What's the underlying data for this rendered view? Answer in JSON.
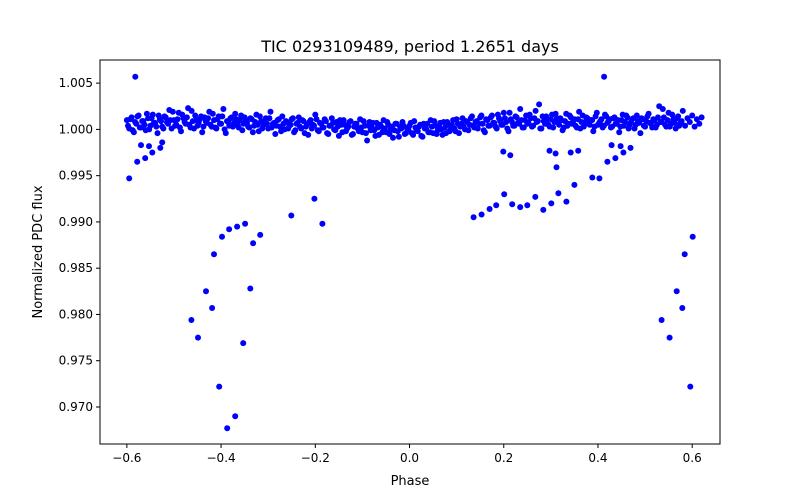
{
  "chart_data": {
    "type": "scatter",
    "title": "TIC 0293109489, period 1.2651 days",
    "xlabel": "Phase",
    "ylabel": "Normalized PDC flux",
    "xlim": [
      -0.657,
      0.659
    ],
    "ylim": [
      0.966,
      1.0075
    ],
    "xticks": [
      -0.6,
      -0.4,
      -0.2,
      0.0,
      0.2,
      0.4,
      0.6
    ],
    "xtick_labels": [
      "−0.6",
      "−0.4",
      "−0.2",
      "0.0",
      "0.2",
      "0.4",
      "0.6"
    ],
    "yticks": [
      0.97,
      0.975,
      0.98,
      0.985,
      0.99,
      0.995,
      1.0,
      1.005
    ],
    "ytick_labels": [
      "0.970",
      "0.975",
      "0.980",
      "0.985",
      "0.990",
      "0.995",
      "1.000",
      "1.005"
    ],
    "grid": false,
    "marker_color": "#0000ff",
    "band": {
      "x_start": -0.6,
      "x_step": 0.005,
      "y": [
        1.001,
        1.0001,
        1.0013,
        0.9997,
        1.0006,
        1.0015,
        1.0002,
        1.0009,
        0.9999,
        1.0012,
        1.0004,
        1.0016,
        1.0007,
        0.9996,
        1.0011,
        1.0003,
        1.0014,
        1.0008,
        1.0021,
        1.0001,
        1.001,
        1.0005,
        1.0018,
        0.9998,
        1.0012,
        1.0006,
        1.0023,
        1.0002,
        1.0009,
        1.0015,
        1.0004,
        1.0011,
        0.9997,
        1.0013,
        1.0007,
        1.0019,
        1.0003,
        1.001,
        1.0001,
        1.0014,
        1.0006,
        1.0022,
        0.9996,
        1.0008,
        1.0012,
        1.0003,
        1.0017,
        1.0005,
        1.001,
        0.9999,
        1.0013,
        1.0007,
        1.0002,
        1.0011,
        1.0004,
        1.0016,
        0.9998,
        1.0009,
        1.0005,
        1.0012,
        1.0001,
        1.0019,
        1.0006,
        0.9995,
        1.001,
        1.0003,
        1.0014,
        1.0,
        1.0008,
        1.0004,
        1.0011,
        0.9997,
        1.0006,
        1.0013,
        1.0001,
        1.0009,
        1.0003,
        0.9994,
        1.001,
        1.0005,
        1.0016,
        0.9999,
        1.0007,
        1.0002,
        1.0011,
        0.9996,
        1.0004,
        1.0012,
        1.0,
        1.0008,
        0.9993,
        1.0005,
        1.001,
        0.9998,
        1.0003,
        1.0009,
        0.9995,
        1.0006,
        1.0001,
        1.0011,
        0.9997,
        1.0004,
        0.9988,
        1.0008,
        1.0002,
        0.9999,
        1.0007,
        0.9994,
        1.0003,
        1.001,
        0.9997,
        1.0005,
        1.0,
        0.9991,
        1.0006,
        0.9998,
        1.0003,
        1.0008,
        0.9995,
        1.0001,
        1.0004,
        0.9996,
        1.0009,
        0.9999,
        1.0003,
        0.9993,
        1.0006,
        1.0001,
        0.9997,
        1.001,
        0.9996,
        1.0004,
        0.9999,
        1.0007,
        0.9994,
        1.0002,
        1.0008,
        0.9998,
        1.0005,
        1.0001,
        1.0011,
        0.9996,
        1.0006,
        1.0003,
        1.0009,
        0.9999,
        1.0012,
        1.0004,
        1.0008,
        1.0001,
        1.0013,
        1.0006,
        0.9997,
        1.001,
        1.0004,
        1.0015,
        1.0007,
        1.0001,
        1.0012,
        1.0005,
        1.0018,
        1.0008,
        0.9998,
        1.0011,
        1.0004,
        1.0014,
        1.0007,
        1.0022,
        1.0002,
        1.001,
        1.0006,
        1.0016,
        1.0003,
        1.0012,
        1.0008,
        1.0027,
        1.0001,
        1.0009,
        1.0014,
        1.0005,
        1.0011,
        1.0002,
        1.0017,
        1.0007,
        1.0012,
        0.9999,
        1.0009,
        1.0004,
        1.0015,
        1.0006,
        1.0011,
        1.0002,
        1.0019,
        1.0008,
        1.0003,
        1.0013,
        1.0006,
        1.001,
        0.9998,
        1.0014,
        1.0005,
        1.0009,
        1.0002,
        1.0016,
        1.0007,
        1.0011,
        1.0003,
        1.0013,
        1.0006,
        0.9997,
        1.001,
        1.0004,
        1.0015,
        1.0001,
        1.0008,
        1.0012,
        1.0005,
        1.0009,
        0.9996,
        1.0011,
        1.0003,
        1.0014,
        1.0007,
        1.0002,
        1.001,
        1.0005,
        1.0025,
        1.0008,
        1.0013,
        1.0003,
        1.0018,
        1.0006,
        1.0011,
        1.0001,
        1.0014,
        1.0007,
        1.002,
        1.0004,
        1.0012,
        1.0008,
        1.0015,
        1.0003,
        1.0011,
        1.0006,
        1.0013
      ]
    },
    "band_upper": {
      "x_start": -0.5975,
      "x_step": 0.005,
      "y": [
        1.0004,
        1.0011,
        0.9999,
        1.0008,
        1.0014,
        1.0002,
        1.0009,
        1.0005,
        1.0017,
        1.0,
        1.0012,
        1.0007,
        1.0003,
        1.0015,
        1.0009,
        1.0001,
        1.0013,
        1.0006,
        1.001,
        1.0019,
        1.0004,
        1.0011,
        1.0002,
        1.0016,
        1.0008,
        1.0013,
        1.0005,
        1.002,
        1.0001,
        1.001,
        1.0007,
        1.0014,
        1.0003,
        1.0009,
        1.0012,
        1.0005,
        1.0017,
        1.0002,
        1.0011,
        1.0006,
        1.0014,
        1.0,
        1.0009,
        1.0004,
        1.0013,
        1.0007,
        1.0011,
        1.0002,
        1.0015,
        1.0006,
        1.001,
        1.0003,
        1.0012,
        0.9997,
        1.0008,
        1.0005,
        1.0014,
        1.0001,
        1.0009,
        1.0006,
        1.0012,
        1.0002,
        1.0007,
        1.0004,
        1.0011,
        0.9998,
        1.0006,
        1.0009,
        1.0001,
        1.0005,
        1.0012,
        0.9999,
        1.0007,
        1.0003,
        1.001,
        0.9996,
        1.0005,
        1.0008,
        1.0001,
        1.0004,
        1.0011,
        0.9998,
        1.0006,
        1.0002,
        1.0009,
        0.9995,
        1.0004,
        1.0007,
        0.9999,
        1.0003,
        1.001,
        0.9997,
        1.0005,
        1.0001,
        1.0008,
        0.9994,
        1.0003,
        1.0006,
        0.9998,
        1.0002,
        1.0009,
        0.9996,
        1.0004,
        0.9999,
        1.0007,
        0.9993,
        1.0002,
        1.0005,
        0.9997,
        1.0001,
        1.0008,
        0.9995,
        1.0003,
        0.9999,
        1.0006,
        0.9992,
        1.0001,
        1.0004,
        0.9996,
        1.0,
        1.0007,
        0.9994,
        1.0002,
        0.9998,
        1.0005,
        0.9992,
        1.0001,
        1.0006,
        0.9997,
        1.0003,
        1.0009,
        0.9995,
        1.0004,
        1.0,
        1.0008,
        0.9996,
        1.0005,
        1.0002,
        1.001,
        0.9998,
        1.0006,
        1.0003,
        1.0012,
        1.0,
        1.0008,
        1.0005,
        1.0014,
        1.0002,
        1.0009,
        1.0006,
        1.0015,
        0.9999,
        1.0011,
        1.0004,
        1.0013,
        1.0007,
        1.0003,
        1.0016,
        1.0009,
        1.0005,
        1.0012,
        1.0001,
        1.0018,
        1.0008,
        1.0004,
        1.0013,
        1.0006,
        1.001,
        1.0002,
        1.0015,
        1.0007,
        1.0012,
        1.0004,
        1.002,
        1.0009,
        1.0001,
        1.0014,
        1.0006,
        1.0011,
        1.0003,
        1.0016,
        1.0008,
        1.0012,
        1.0005,
        1.001,
        1.0002,
        1.0017,
        1.0006,
        1.0013,
        1.0009,
        1.0004,
        1.0011,
        1.0001,
        1.0015,
        1.0008,
        1.0012,
        1.0005,
        1.001,
        1.0003,
        1.0018,
        1.0007,
        1.0011,
        1.0004,
        1.0014,
        1.0009,
        1.0002,
        1.0012,
        1.0006,
        1.001,
        1.0003,
        1.0016,
        1.0008,
        1.0013,
        1.0005,
        1.0011,
        1.0001,
        1.0015,
        1.0007,
        1.0012,
        1.0004,
        1.0009,
        1.0017,
        1.0006,
        1.0011,
        1.0002,
        1.0013,
        1.0008,
        1.0022,
        1.0005,
        1.001,
        1.0003,
        1.0016,
        1.0007,
        1.0012,
        1.0004,
        1.0009
      ]
    },
    "points": [
      [
        -0.582,
        1.0057
      ],
      [
        0.413,
        1.0057
      ],
      [
        -0.595,
        0.9947
      ],
      [
        -0.578,
        0.9965
      ],
      [
        -0.561,
        0.9969
      ],
      [
        -0.57,
        0.9983
      ],
      [
        -0.553,
        0.9982
      ],
      [
        -0.546,
        0.9975
      ],
      [
        -0.529,
        0.998
      ],
      [
        -0.525,
        0.9986
      ],
      [
        -0.202,
        0.9925
      ],
      [
        -0.251,
        0.9907
      ],
      [
        -0.185,
        0.9898
      ],
      [
        -0.349,
        0.9898
      ],
      [
        -0.366,
        0.9895
      ],
      [
        -0.383,
        0.9892
      ],
      [
        -0.398,
        0.9884
      ],
      [
        -0.317,
        0.9886
      ],
      [
        -0.332,
        0.9877
      ],
      [
        -0.415,
        0.9865
      ],
      [
        -0.338,
        0.9828
      ],
      [
        -0.432,
        0.9825
      ],
      [
        -0.419,
        0.9807
      ],
      [
        -0.463,
        0.9794
      ],
      [
        -0.449,
        0.9775
      ],
      [
        -0.353,
        0.9769
      ],
      [
        -0.404,
        0.9722
      ],
      [
        -0.37,
        0.969
      ],
      [
        -0.387,
        0.9677
      ],
      [
        0.136,
        0.9905
      ],
      [
        0.153,
        0.9908
      ],
      [
        0.17,
        0.9914
      ],
      [
        0.184,
        0.9918
      ],
      [
        0.201,
        0.993
      ],
      [
        0.218,
        0.9919
      ],
      [
        0.235,
        0.9916
      ],
      [
        0.25,
        0.9918
      ],
      [
        0.267,
        0.9927
      ],
      [
        0.284,
        0.9913
      ],
      [
        0.301,
        0.992
      ],
      [
        0.316,
        0.9931
      ],
      [
        0.333,
        0.9922
      ],
      [
        0.35,
        0.994
      ],
      [
        0.388,
        0.9948
      ],
      [
        0.403,
        0.9947
      ],
      [
        0.312,
        0.9959
      ],
      [
        0.42,
        0.9965
      ],
      [
        0.437,
        0.9969
      ],
      [
        0.199,
        0.9976
      ],
      [
        0.214,
        0.9972
      ],
      [
        0.297,
        0.9977
      ],
      [
        0.31,
        0.9974
      ],
      [
        0.342,
        0.9975
      ],
      [
        0.358,
        0.9977
      ],
      [
        0.454,
        0.9975
      ],
      [
        0.469,
        0.998
      ],
      [
        0.429,
        0.9983
      ],
      [
        0.448,
        0.9982
      ],
      [
        0.601,
        0.9884
      ],
      [
        0.584,
        0.9865
      ],
      [
        0.567,
        0.9825
      ],
      [
        0.579,
        0.9807
      ],
      [
        0.535,
        0.9794
      ],
      [
        0.552,
        0.9775
      ],
      [
        0.596,
        0.9722
      ]
    ]
  }
}
